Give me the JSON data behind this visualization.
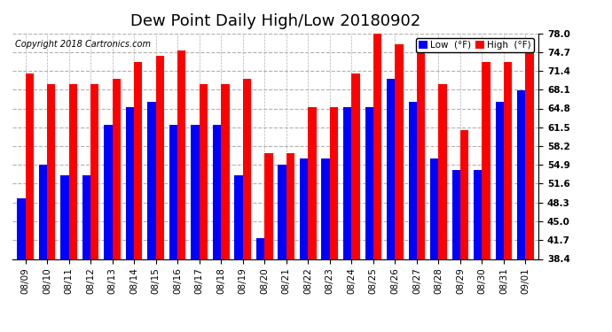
{
  "title": "Dew Point Daily High/Low 20180902",
  "copyright": "Copyright 2018 Cartronics.com",
  "dates": [
    "08/09",
    "08/10",
    "08/11",
    "08/12",
    "08/13",
    "08/14",
    "08/15",
    "08/16",
    "08/17",
    "08/18",
    "08/19",
    "08/20",
    "08/21",
    "08/22",
    "08/23",
    "08/24",
    "08/25",
    "08/26",
    "08/27",
    "08/28",
    "08/29",
    "08/30",
    "08/31",
    "09/01"
  ],
  "lows": [
    49,
    55,
    53,
    53,
    62,
    65,
    66,
    62,
    62,
    62,
    53,
    42,
    55,
    56,
    56,
    65,
    65,
    70,
    66,
    56,
    54,
    54,
    66,
    68
  ],
  "highs": [
    71,
    69,
    69,
    69,
    70,
    73,
    74,
    75,
    69,
    69,
    70,
    57,
    57,
    65,
    65,
    71,
    78,
    76,
    77,
    69,
    61,
    73,
    73,
    75
  ],
  "low_color": "#0000ff",
  "high_color": "#ff0000",
  "bg_color": "#ffffff",
  "grid_color": "#b0b0b0",
  "ylim_min": 38.4,
  "ylim_max": 78.0,
  "yticks": [
    38.4,
    41.7,
    45.0,
    48.3,
    51.6,
    54.9,
    58.2,
    61.5,
    64.8,
    68.1,
    71.4,
    74.7,
    78.0
  ],
  "bar_width": 0.38,
  "title_fontsize": 13,
  "tick_fontsize": 7.5,
  "legend_low_label": "Low  (°F)",
  "legend_high_label": "High  (°F)"
}
